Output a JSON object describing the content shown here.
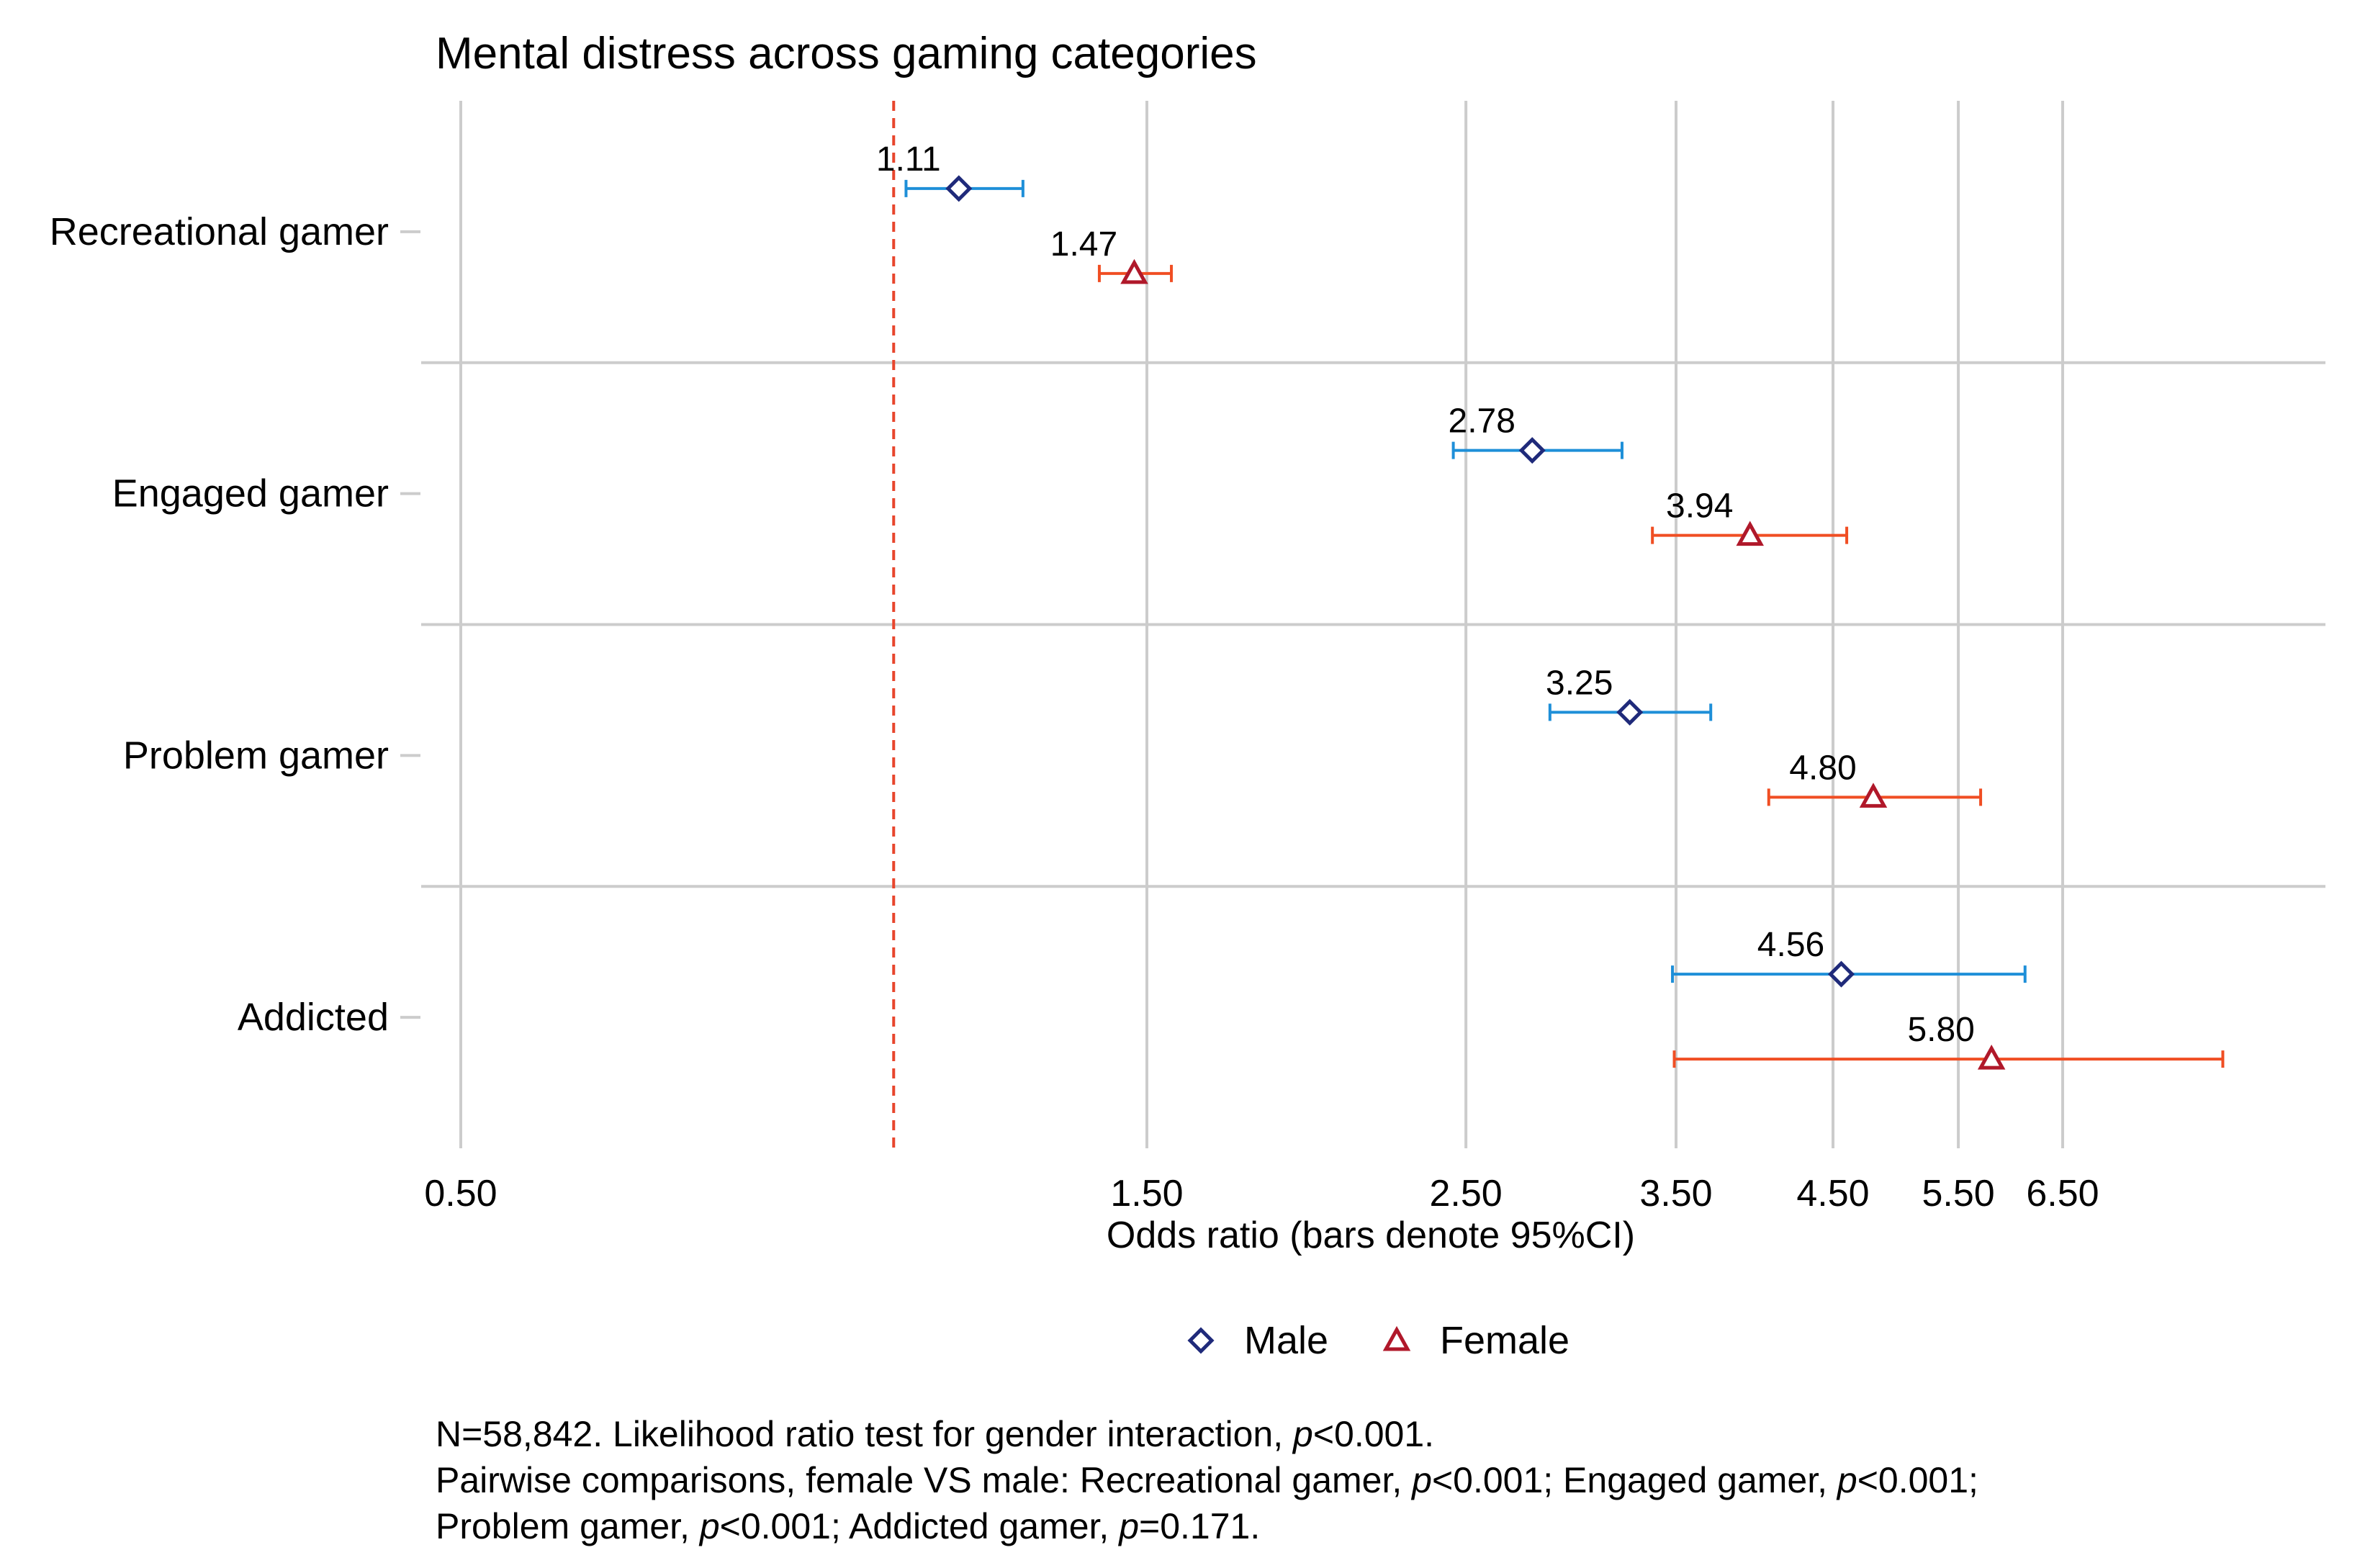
{
  "chart_data": {
    "type": "forest",
    "title": "Mental distress across gaming categories",
    "xlabel": "Odds ratio (bars denote 95%CI)",
    "x_scale": "log",
    "xlim": [
      0.5,
      8.5
    ],
    "x_ticks": [
      0.5,
      1.5,
      2.5,
      3.5,
      4.5,
      5.5,
      6.5
    ],
    "x_tick_labels": [
      "0.50",
      "1.50",
      "2.50",
      "3.50",
      "4.50",
      "5.50",
      "6.50"
    ],
    "reference_line": 1.0,
    "categories": [
      "Recreational gamer",
      "Engaged gamer",
      "Problem gamer",
      "Addicted"
    ],
    "series": [
      {
        "name": "Male",
        "marker": "diamond",
        "values": [
          1.11,
          2.78,
          3.25,
          4.56
        ],
        "value_labels": [
          "1.11",
          "2.78",
          "3.25",
          "4.56"
        ],
        "ci_low": [
          1.02,
          2.45,
          2.86,
          3.48
        ],
        "ci_high": [
          1.23,
          3.21,
          3.7,
          6.12
        ]
      },
      {
        "name": "Female",
        "marker": "triangle",
        "values": [
          1.47,
          3.94,
          4.8,
          5.8
        ],
        "value_labels": [
          "1.47",
          "3.94",
          "4.80",
          "5.80"
        ],
        "ci_low": [
          1.39,
          3.37,
          4.06,
          3.49
        ],
        "ci_high": [
          1.56,
          4.6,
          5.7,
          8.4
        ]
      }
    ],
    "legend": {
      "position": "bottom",
      "entries": [
        "Male",
        "Female"
      ]
    }
  },
  "notes": {
    "line1_prefix": "N=58,842. Likelihood ratio test for gender interaction, ",
    "line1_p": "p",
    "line1_value": "<0.001.",
    "line2_a": "Pairwise comparisons, female VS male: Recreational gamer, ",
    "line2_p1": "p",
    "line2_b": "<0.001; Engaged gamer, ",
    "line2_p2": "p",
    "line2_c": "<0.001;",
    "line3_a": "Problem gamer, ",
    "line3_p1": "p",
    "line3_b": "<0.001; Addicted gamer, ",
    "line3_p2": "p",
    "line3_c": "=0.171."
  },
  "colors": {
    "male_marker": "#1f2a7a",
    "male_ci": "#1e8fd8",
    "female_marker": "#b0182a",
    "female_ci": "#f04e23",
    "reference_line": "#e8452c",
    "grid": "#cccccc",
    "text": "#000000"
  }
}
